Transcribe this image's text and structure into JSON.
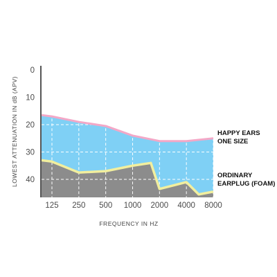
{
  "chart_data": {
    "type": "area",
    "xlabel": "FREQUENCY IN HZ",
    "ylabel": "LOWEST ATTENUATION IN dB (APV)",
    "x_tick_labels": [
      "125",
      "250",
      "500",
      "1000",
      "2000",
      "4000",
      "8000"
    ],
    "y_ticks": [
      0,
      10,
      20,
      30,
      40
    ],
    "ylim": [
      0,
      46
    ],
    "y_inverted": true,
    "grid": "dashed white, inside area",
    "series": [
      {
        "name": "HAPPY EARS ONE SIZE",
        "label_lines": [
          "HAPPY EARS",
          "ONE SIZE"
        ],
        "line_color": "#f3a8c7",
        "fill_color": "#7fd0f5",
        "points": [
          {
            "x": 8,
            "y": 16.5
          },
          {
            "x": 125,
            "y": 17
          },
          {
            "x": 250,
            "y": 19
          },
          {
            "x": 500,
            "y": 20.5
          },
          {
            "x": 1000,
            "y": 24
          },
          {
            "x": 2000,
            "y": 26
          },
          {
            "x": 4000,
            "y": 26
          },
          {
            "x": 8000,
            "y": 25
          },
          {
            "x": 9500,
            "y": 25
          }
        ]
      },
      {
        "name": "ORDINARY EARPLUG (FOAM)",
        "label_lines": [
          "ORDINARY",
          "EARPLUG (FOAM)"
        ],
        "line_color": "#f2ef9e",
        "fill_color": "#8c8c8c",
        "points": [
          {
            "x": 8,
            "y": 33
          },
          {
            "x": 125,
            "y": 33.5
          },
          {
            "x": 250,
            "y": 37.5
          },
          {
            "x": 500,
            "y": 37
          },
          {
            "x": 1000,
            "y": 35
          },
          {
            "x": 1600,
            "y": 34
          },
          {
            "x": 2000,
            "y": 43.5
          },
          {
            "x": 4000,
            "y": 41
          },
          {
            "x": 5500,
            "y": 45.5
          },
          {
            "x": 8000,
            "y": 44.5
          },
          {
            "x": 9500,
            "y": 44.5
          }
        ]
      }
    ],
    "colors": {
      "axis": "#555555",
      "grid": "#ffffff"
    }
  }
}
